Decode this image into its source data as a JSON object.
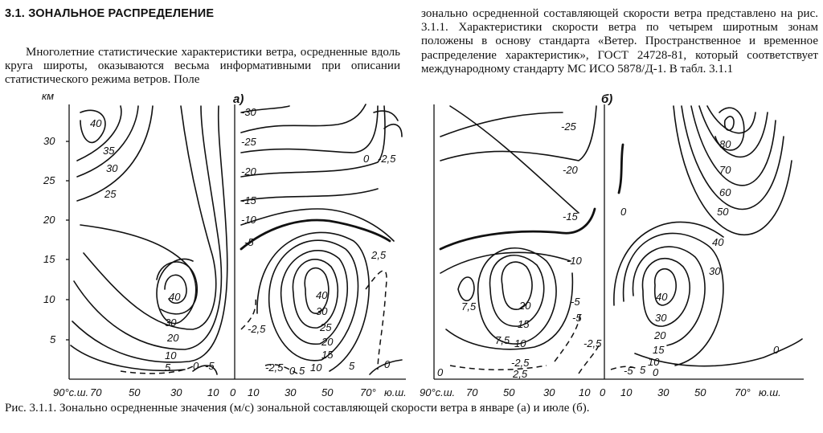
{
  "section": {
    "heading": "3.1. ЗОНАЛЬНОЕ РАСПРЕДЕЛЕНИЕ"
  },
  "body": {
    "left_paragraph": "Многолетние статистические характеристики ветра, осредненные вдоль круга широты, оказываются весьма информативными при описании статистического режима ветров. Поле",
    "right_paragraph": "зонально осредненной составляющей скорости ветра представлено на рис. 3.1.1. Характеристики скорости ветра по четырем широтным зонам положены в основу стандарта «Ветер. Пространственное и временное распределение характеристик», ГОСТ 24728-81, который соответствует международному стандарту МС ИСО 5878/Д-1. В табл. 3.1.1"
  },
  "figure": {
    "caption": "Рис. 3.1.1. Зонально осредненные значения (м/с) зональной составляющей скорости ветра в январе (а) и июле (б).",
    "y_unit": "км",
    "y_ticks": [
      "30",
      "25",
      "20",
      "15",
      "10",
      "5"
    ],
    "panel_a": {
      "label": "а)",
      "x_ticks_nh": [
        "90°с.ш.",
        "70",
        "50",
        "30",
        "10",
        "0"
      ],
      "x_ticks_sh": [
        "10",
        "30",
        "50",
        "70°",
        "ю.ш."
      ],
      "contour_labels_nh": [
        "40",
        "35",
        "30",
        "25",
        "40",
        "30",
        "20",
        "10",
        "5",
        "0",
        "-5"
      ],
      "contour_labels_sh": [
        "-30",
        "-25",
        "-20",
        "-15",
        "-10",
        "-5",
        "0",
        "-2,5",
        "2,5",
        "40",
        "30",
        "25",
        "20",
        "15",
        "10",
        "5",
        "-2,5",
        "-2,5",
        "0",
        "5",
        "0"
      ]
    },
    "panel_b": {
      "label": "б)",
      "x_ticks_nh": [
        "90°с.ш.",
        "70",
        "50",
        "30",
        "10",
        "0"
      ],
      "x_ticks_sh": [
        "10",
        "30",
        "50",
        "70°",
        "ю.ш."
      ],
      "contour_labels_nh": [
        "-25",
        "-20",
        "-15",
        "-10",
        "-5",
        "-2,5",
        "20",
        "15",
        "7,5",
        "7,5",
        "10",
        "0",
        "-2,5",
        "2,5",
        "-5"
      ],
      "contour_labels_sh": [
        "80",
        "70",
        "60",
        "50",
        "40",
        "30",
        "0",
        "40",
        "30",
        "20",
        "15",
        "10",
        "5",
        "0",
        "0",
        "-5"
      ]
    }
  }
}
